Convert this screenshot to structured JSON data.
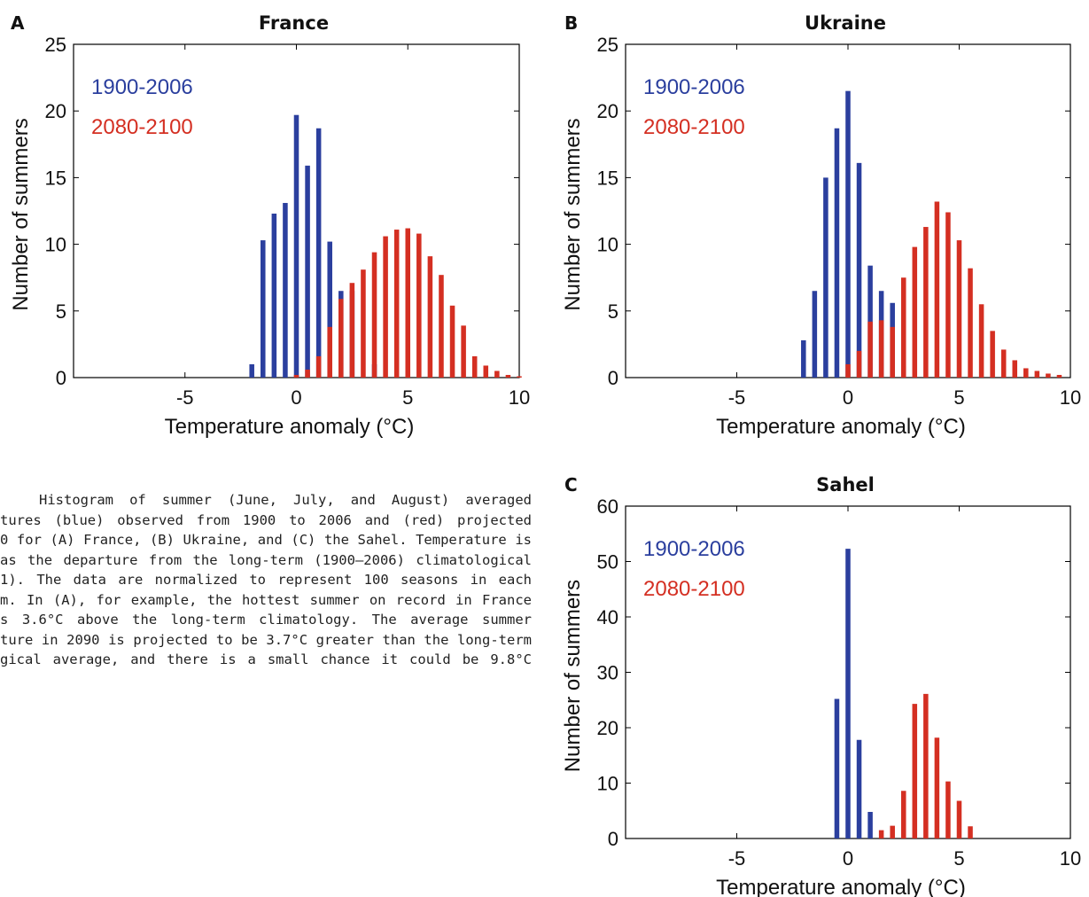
{
  "caption_lines": [
    "Histogram of summer (June, July, and August) averaged",
    "tures (blue) observed from 1900 to 2006 and (red) projected",
    "0 for (A) France, (B) Ukraine, and (C) the Sahel. Temperature is",
    "as the departure from the long-term (1900–2006) climatological",
    "1). The data are normalized to represent 100 seasons in each",
    "m. In (A), for example, the hottest summer on record in France",
    "s 3.6°C above the long-term climatology. The average summer",
    "ture in 2090 is projected to be 3.7°C greater than the long-term",
    "gical average, and there is a small chance it could be 9.8°C"
  ],
  "colors": {
    "observed": "#2b3f9e",
    "projected": "#d42f22"
  },
  "chart_data": [
    {
      "panel": "A",
      "type": "bar",
      "title": "France",
      "xlabel": "Temperature anomaly (°C)",
      "ylabel": "Number of summers",
      "xlim": [
        -10,
        10
      ],
      "ylim": [
        0,
        25
      ],
      "xticks": [
        -5,
        0,
        5,
        10
      ],
      "yticks": [
        0,
        5,
        10,
        15,
        20,
        25
      ],
      "series": [
        {
          "name": "1900-2006",
          "x": [
            -2.0,
            -1.5,
            -1.0,
            -0.5,
            0.0,
            0.5,
            1.0,
            1.5,
            2.0,
            2.5,
            3.5
          ],
          "values": [
            1.0,
            10.3,
            12.3,
            13.1,
            19.7,
            15.9,
            18.7,
            10.2,
            6.5,
            6.5,
            1.0
          ]
        },
        {
          "name": "2080-2100",
          "x": [
            0.0,
            0.5,
            1.0,
            1.5,
            2.0,
            2.5,
            3.0,
            3.5,
            4.0,
            4.5,
            5.0,
            5.5,
            6.0,
            6.5,
            7.0,
            7.5,
            8.0,
            8.5,
            9.0,
            9.5,
            10.0
          ],
          "values": [
            0.2,
            0.6,
            1.6,
            3.8,
            5.9,
            7.1,
            8.1,
            9.4,
            10.6,
            11.1,
            11.2,
            10.8,
            9.1,
            7.7,
            5.4,
            3.9,
            1.6,
            0.9,
            0.5,
            0.2,
            0.1
          ]
        }
      ]
    },
    {
      "panel": "B",
      "type": "bar",
      "title": "Ukraine",
      "xlabel": "Temperature anomaly (°C)",
      "ylabel": "Number of summers",
      "xlim": [
        -10,
        10
      ],
      "ylim": [
        0,
        25
      ],
      "xticks": [
        -5,
        0,
        5,
        10
      ],
      "yticks": [
        0,
        5,
        10,
        15,
        20,
        25
      ],
      "series": [
        {
          "name": "1900-2006",
          "x": [
            -2.0,
            -1.5,
            -1.0,
            -0.5,
            0.0,
            0.5,
            1.0,
            1.5,
            2.0,
            2.5
          ],
          "values": [
            2.8,
            6.5,
            15.0,
            18.7,
            21.5,
            16.1,
            8.4,
            6.5,
            5.6,
            0.9
          ]
        },
        {
          "name": "2080-2100",
          "x": [
            0.0,
            0.5,
            1.0,
            1.5,
            2.0,
            2.5,
            3.0,
            3.5,
            4.0,
            4.5,
            5.0,
            5.5,
            6.0,
            6.5,
            7.0,
            7.5,
            8.0,
            8.5,
            9.0,
            9.5
          ],
          "values": [
            1.0,
            2.0,
            4.2,
            4.3,
            3.8,
            7.5,
            9.8,
            11.3,
            13.2,
            12.4,
            10.3,
            8.2,
            5.5,
            3.5,
            2.1,
            1.3,
            0.7,
            0.5,
            0.3,
            0.2
          ]
        }
      ]
    },
    {
      "panel": "C",
      "type": "bar",
      "title": "Sahel",
      "xlabel": "Temperature anomaly (°C)",
      "ylabel": "Number of summers",
      "xlim": [
        -10,
        10
      ],
      "ylim": [
        0,
        60
      ],
      "xticks": [
        -5,
        0,
        5,
        10
      ],
      "yticks": [
        0,
        10,
        20,
        30,
        40,
        50,
        60
      ],
      "series": [
        {
          "name": "1900-2006",
          "x": [
            -0.5,
            0.0,
            0.5,
            1.0
          ],
          "values": [
            25.2,
            52.3,
            17.8,
            4.8
          ]
        },
        {
          "name": "2080-2100",
          "x": [
            1.5,
            2.0,
            2.5,
            3.0,
            3.5,
            4.0,
            4.5,
            5.0,
            5.5
          ],
          "values": [
            1.5,
            2.3,
            8.6,
            24.3,
            26.1,
            18.2,
            10.3,
            6.8,
            2.2
          ]
        }
      ]
    }
  ]
}
